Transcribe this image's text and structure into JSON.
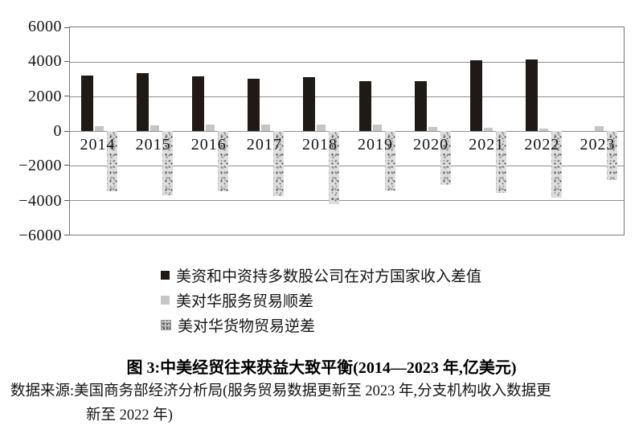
{
  "figure": {
    "caption": "图 3:中美经贸往来获益大致平衡(2014—2023 年,亿美元)",
    "source_line1": "数据来源:美国商务部经济分析局(服务贸易数据更新至 2023 年,分支机构收入数据更",
    "source_line2": "新至 2022 年)"
  },
  "chart_data": {
    "type": "bar",
    "title": "图 3:中美经贸往来获益大致平衡(2014—2023 年,亿美元)",
    "unit": "亿美元",
    "categories": [
      "2014",
      "2015",
      "2016",
      "2017",
      "2018",
      "2019",
      "2020",
      "2021",
      "2022",
      "2023"
    ],
    "series": [
      {
        "name": "美资和中资持多数股公司在对方国家收入差值",
        "style": "solid-black",
        "color": "#201a16",
        "values": [
          3200,
          3330,
          3150,
          3000,
          3100,
          2850,
          2870,
          4080,
          4120,
          null
        ]
      },
      {
        "name": "美对华服务贸易顺差",
        "style": "solid-gray",
        "color": "#c5c5c5",
        "values": [
          280,
          310,
          360,
          380,
          390,
          370,
          250,
          170,
          130,
          270
        ]
      },
      {
        "name": "美对华货物贸易逆差",
        "style": "speckled",
        "color": "#dedede",
        "values": [
          -3440,
          -3670,
          -3470,
          -3750,
          -4180,
          -3420,
          -3100,
          -3530,
          -3820,
          -2790
        ]
      }
    ],
    "y_axis": {
      "min": -6000,
      "max": 6000,
      "step": 2000,
      "tick_labels": [
        "6000",
        "4000",
        "2000",
        "0",
        "−2000",
        "−4000",
        "−6000"
      ]
    },
    "grid": true,
    "legend_position": "below-plot",
    "colors": {
      "gridline": "#8f8f8f",
      "plot_border": "#787878",
      "text": "#141414",
      "background": "#ffffff"
    }
  }
}
